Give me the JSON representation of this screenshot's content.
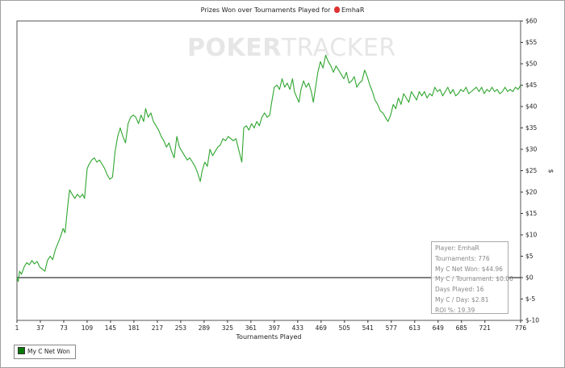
{
  "chart": {
    "title_prefix": "Prizes Won over Tournaments Played for",
    "player": "EmhaR",
    "watermark_bold": "POKER",
    "watermark_thin": "TRACKER",
    "legend_label": "My C Net Won",
    "stats": [
      "Player: EmhaR",
      "Tournaments: 776",
      "My C Net Won: $44.96",
      "My C / Tournament: $0.06",
      "Days Played: 16",
      "My C / Day: $2.81",
      "ROI %: 19.39"
    ]
  },
  "colors": {
    "line": "#2fa52f",
    "axis": "#000000",
    "grid": "#f0f0f0"
  },
  "chart_data": {
    "type": "line",
    "title": "Prizes Won over Tournaments Played for EmhaR",
    "xlabel": "Tournaments Played",
    "ylabel": "$",
    "xlim": [
      1,
      776
    ],
    "ylim": [
      -10,
      60
    ],
    "xticks": [
      "1",
      "37",
      "73",
      "109",
      "145",
      "181",
      "217",
      "253",
      "289",
      "325",
      "361",
      "397",
      "433",
      "469",
      "505",
      "541",
      "577",
      "613",
      "649",
      "685",
      "721",
      "776"
    ],
    "yticks": [
      "$60",
      "$55",
      "$50",
      "$45",
      "$40",
      "$35",
      "$30",
      "$25",
      "$20",
      "$15",
      "$10",
      "$5",
      "$0",
      "$-5",
      "$-10"
    ],
    "series": [
      {
        "name": "My C Net Won",
        "points": [
          [
            1,
            0
          ],
          [
            3,
            -0.9
          ],
          [
            5,
            1.5
          ],
          [
            8,
            0.8
          ],
          [
            12,
            2.5
          ],
          [
            16,
            3.5
          ],
          [
            20,
            3.0
          ],
          [
            24,
            4.0
          ],
          [
            28,
            3.2
          ],
          [
            32,
            3.8
          ],
          [
            36,
            2.5
          ],
          [
            40,
            2.0
          ],
          [
            44,
            1.5
          ],
          [
            48,
            4.0
          ],
          [
            52,
            5.0
          ],
          [
            56,
            4.2
          ],
          [
            60,
            6.5
          ],
          [
            64,
            8.0
          ],
          [
            68,
            9.5
          ],
          [
            72,
            11.5
          ],
          [
            75,
            10.5
          ],
          [
            78,
            15.0
          ],
          [
            80,
            18.0
          ],
          [
            82,
            20.5
          ],
          [
            86,
            19.5
          ],
          [
            90,
            18.5
          ],
          [
            94,
            19.5
          ],
          [
            98,
            18.8
          ],
          [
            102,
            19.5
          ],
          [
            105,
            18.5
          ],
          [
            107,
            22.0
          ],
          [
            109,
            25.5
          ],
          [
            112,
            26.5
          ],
          [
            116,
            27.5
          ],
          [
            120,
            28.0
          ],
          [
            124,
            27.0
          ],
          [
            128,
            27.5
          ],
          [
            132,
            26.5
          ],
          [
            136,
            25.5
          ],
          [
            140,
            24.0
          ],
          [
            144,
            23.0
          ],
          [
            148,
            23.5
          ],
          [
            152,
            29.5
          ],
          [
            156,
            33.0
          ],
          [
            160,
            35.0
          ],
          [
            164,
            33.0
          ],
          [
            168,
            31.5
          ],
          [
            172,
            36.0
          ],
          [
            176,
            37.5
          ],
          [
            180,
            38.0
          ],
          [
            184,
            37.5
          ],
          [
            188,
            36.0
          ],
          [
            192,
            38.0
          ],
          [
            196,
            36.5
          ],
          [
            199,
            39.5
          ],
          [
            203,
            37.5
          ],
          [
            207,
            38.5
          ],
          [
            211,
            36.5
          ],
          [
            215,
            35.5
          ],
          [
            219,
            34.5
          ],
          [
            223,
            33.0
          ],
          [
            227,
            32.0
          ],
          [
            231,
            30.5
          ],
          [
            235,
            31.5
          ],
          [
            239,
            29.5
          ],
          [
            243,
            28.0
          ],
          [
            247,
            33.0
          ],
          [
            251,
            30.5
          ],
          [
            255,
            29.5
          ],
          [
            259,
            28.5
          ],
          [
            263,
            27.5
          ],
          [
            267,
            28.0
          ],
          [
            271,
            27.0
          ],
          [
            275,
            26.0
          ],
          [
            279,
            24.5
          ],
          [
            283,
            22.5
          ],
          [
            286,
            25.0
          ],
          [
            290,
            27.0
          ],
          [
            294,
            26.0
          ],
          [
            298,
            30.0
          ],
          [
            302,
            28.5
          ],
          [
            306,
            29.5
          ],
          [
            310,
            30.5
          ],
          [
            314,
            31.0
          ],
          [
            318,
            32.5
          ],
          [
            322,
            32.0
          ],
          [
            326,
            33.0
          ],
          [
            330,
            32.5
          ],
          [
            334,
            32.0
          ],
          [
            338,
            32.5
          ],
          [
            347,
            27.0
          ],
          [
            350,
            35.0
          ],
          [
            354,
            35.5
          ],
          [
            358,
            34.5
          ],
          [
            362,
            36.0
          ],
          [
            366,
            35.0
          ],
          [
            370,
            36.5
          ],
          [
            374,
            35.5
          ],
          [
            378,
            37.5
          ],
          [
            382,
            38.5
          ],
          [
            386,
            37.5
          ],
          [
            390,
            38.0
          ],
          [
            393,
            41.0
          ],
          [
            397,
            44.5
          ],
          [
            401,
            45.0
          ],
          [
            405,
            44.0
          ],
          [
            409,
            46.5
          ],
          [
            413,
            44.5
          ],
          [
            417,
            45.5
          ],
          [
            421,
            44.0
          ],
          [
            425,
            46.5
          ],
          [
            428,
            43.5
          ],
          [
            432,
            42.0
          ],
          [
            435,
            41.0
          ],
          [
            438,
            44.0
          ],
          [
            442,
            46.0
          ],
          [
            446,
            44.5
          ],
          [
            450,
            45.5
          ],
          [
            454,
            43.5
          ],
          [
            457,
            41.0
          ],
          [
            460,
            44.0
          ],
          [
            464,
            48.0
          ],
          [
            468,
            50.5
          ],
          [
            472,
            49.0
          ],
          [
            476,
            52.0
          ],
          [
            480,
            50.5
          ],
          [
            484,
            49.5
          ],
          [
            488,
            48.0
          ],
          [
            492,
            49.5
          ],
          [
            496,
            48.5
          ],
          [
            500,
            47.5
          ],
          [
            504,
            46.5
          ],
          [
            508,
            48.0
          ],
          [
            512,
            45.5
          ],
          [
            516,
            46.0
          ],
          [
            520,
            47.0
          ],
          [
            524,
            44.5
          ],
          [
            528,
            45.5
          ],
          [
            532,
            46.0
          ],
          [
            536,
            48.5
          ],
          [
            540,
            47.0
          ],
          [
            544,
            45.0
          ],
          [
            548,
            43.5
          ],
          [
            552,
            41.5
          ],
          [
            556,
            40.5
          ],
          [
            560,
            39.0
          ],
          [
            564,
            38.5
          ],
          [
            568,
            37.5
          ],
          [
            572,
            36.5
          ],
          [
            576,
            38.0
          ],
          [
            580,
            40.5
          ],
          [
            584,
            39.5
          ],
          [
            588,
            42.0
          ],
          [
            592,
            40.5
          ],
          [
            596,
            43.0
          ],
          [
            600,
            42.0
          ],
          [
            604,
            41.0
          ],
          [
            608,
            43.5
          ],
          [
            612,
            42.5
          ],
          [
            616,
            41.5
          ],
          [
            620,
            43.5
          ],
          [
            624,
            42.5
          ],
          [
            628,
            43.5
          ],
          [
            632,
            42.0
          ],
          [
            636,
            43.0
          ],
          [
            640,
            42.5
          ],
          [
            644,
            44.5
          ],
          [
            648,
            43.5
          ],
          [
            652,
            44.0
          ],
          [
            656,
            42.5
          ],
          [
            660,
            43.5
          ],
          [
            664,
            44.5
          ],
          [
            668,
            43.0
          ],
          [
            672,
            44.0
          ],
          [
            676,
            42.5
          ],
          [
            680,
            43.0
          ],
          [
            684,
            44.0
          ],
          [
            688,
            43.5
          ],
          [
            692,
            44.5
          ],
          [
            696,
            43.0
          ],
          [
            700,
            43.5
          ],
          [
            704,
            44.0
          ],
          [
            708,
            44.5
          ],
          [
            712,
            43.5
          ],
          [
            716,
            44.5
          ],
          [
            720,
            43.0
          ],
          [
            724,
            44.0
          ],
          [
            728,
            43.5
          ],
          [
            732,
            44.5
          ],
          [
            736,
            43.5
          ],
          [
            740,
            44.0
          ],
          [
            744,
            43.0
          ],
          [
            748,
            43.5
          ],
          [
            752,
            44.5
          ],
          [
            756,
            43.5
          ],
          [
            760,
            44.0
          ],
          [
            764,
            43.5
          ],
          [
            768,
            44.5
          ],
          [
            772,
            44.0
          ],
          [
            776,
            44.96
          ]
        ]
      }
    ]
  }
}
